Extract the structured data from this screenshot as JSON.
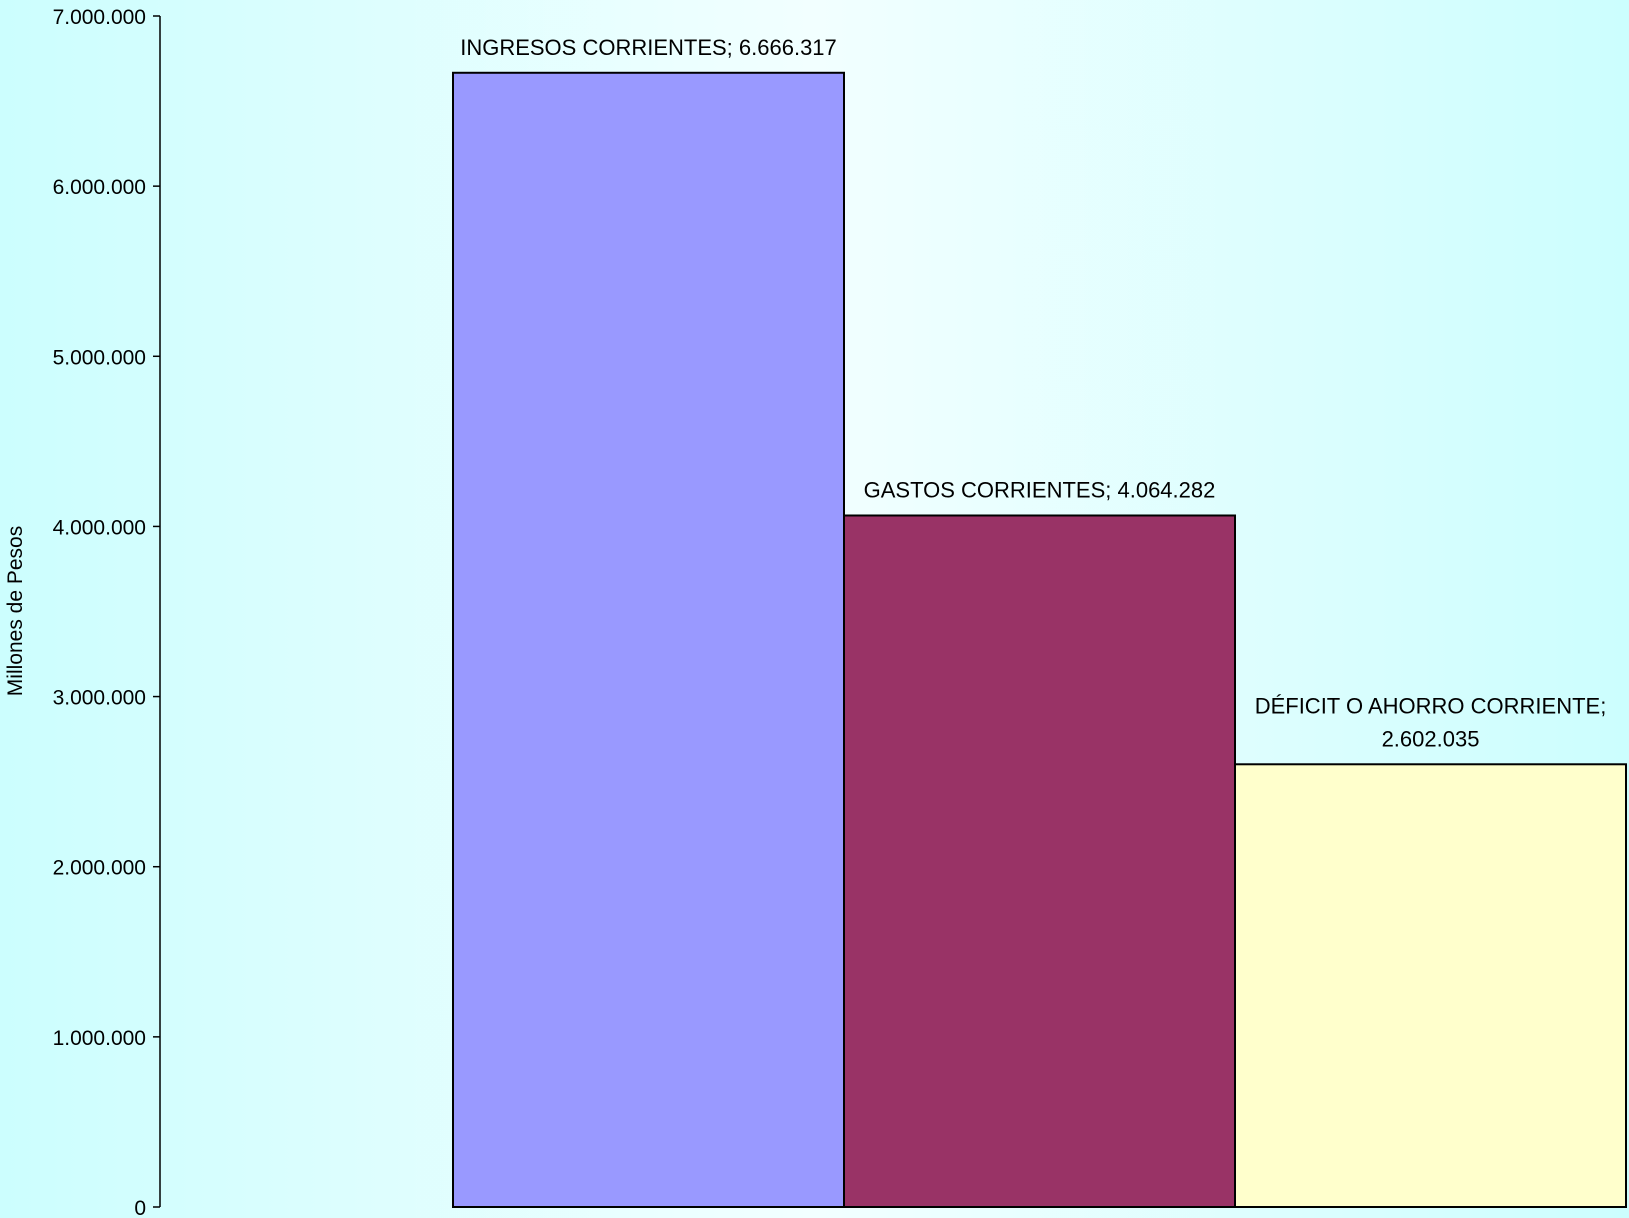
{
  "chart_data": {
    "type": "bar",
    "title": "",
    "xlabel": "",
    "ylabel": "Millones de Pesos",
    "ylim": [
      0,
      7000000
    ],
    "yticks": [
      0,
      1000000,
      2000000,
      3000000,
      4000000,
      5000000,
      6000000,
      7000000
    ],
    "ytick_labels": [
      "0",
      "1.000.000",
      "2.000.000",
      "3.000.000",
      "4.000.000",
      "5.000.000",
      "6.000.000",
      "7.000.000"
    ],
    "grid": false,
    "legend": "none",
    "categories": [
      "INGRESOS CORRIENTES",
      "GASTOS CORRIENTES",
      "DÉFICIT O AHORRO CORRIENTE"
    ],
    "values": [
      6666317,
      4064282,
      2602035
    ],
    "data_labels": [
      [
        "INGRESOS CORRIENTES; 6.666.317"
      ],
      [
        "GASTOS CORRIENTES; 4.064.282"
      ],
      [
        "DÉFICIT O AHORRO CORRIENTE;",
        "2.602.035"
      ]
    ],
    "colors": [
      "#9999ff",
      "#993366",
      "#ffffcc"
    ],
    "bar_outline": "#000000"
  }
}
